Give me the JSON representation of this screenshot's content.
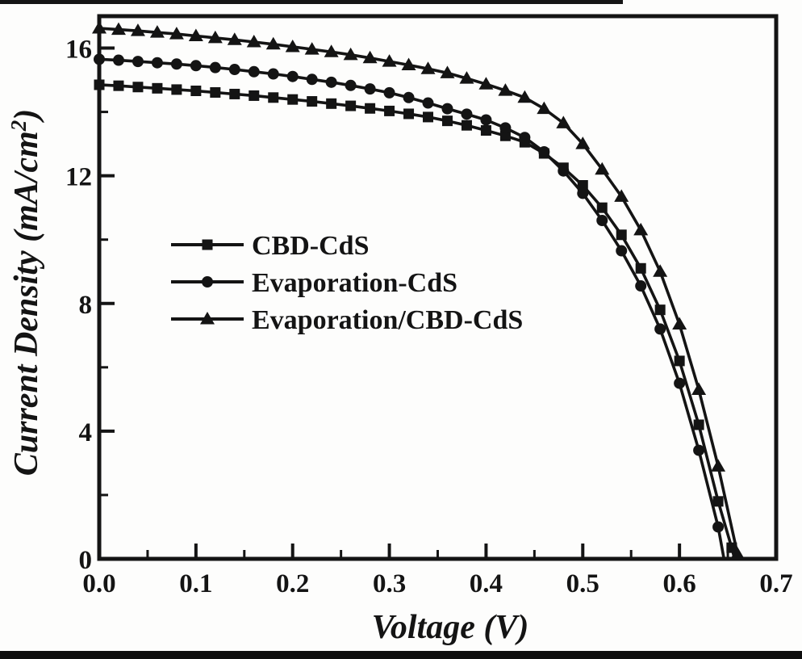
{
  "figure": {
    "background": "#fdfdfc",
    "ink": "#141414",
    "top_rule_color": "#151515",
    "bottom_rule_color": "#0d0d0d"
  },
  "chart_data": {
    "type": "line",
    "title": "",
    "xlabel": "Voltage (V)",
    "ylabel": "Current Density (mA/cm²)",
    "ylabel_parts": {
      "pre": "Current Density (mA/cm",
      "sup": "2",
      "post": ")"
    },
    "xlim": [
      0.0,
      0.7
    ],
    "ylim": [
      0,
      17
    ],
    "grid": false,
    "x_major_ticks": [
      0.0,
      0.1,
      0.2,
      0.3,
      0.4,
      0.5,
      0.6,
      0.7
    ],
    "x_major_tick_labels": [
      "0.0",
      "0.1",
      "0.2",
      "0.3",
      "0.4",
      "0.5",
      "0.6",
      "0.7"
    ],
    "x_minor_ticks": [
      0.05,
      0.15,
      0.25,
      0.35,
      0.45,
      0.55,
      0.65
    ],
    "y_major_ticks": [
      0,
      4,
      8,
      12,
      16
    ],
    "y_major_tick_labels": [
      "0",
      "4",
      "8",
      "12",
      "16"
    ],
    "y_minor_ticks": [
      2,
      6,
      10,
      14
    ],
    "legend": {
      "position": "upper-left-inside",
      "items": [
        "CBD-CdS",
        "Evaporation-CdS",
        "Evaporation/CBD-CdS"
      ]
    },
    "series": [
      {
        "name": "CBD-CdS",
        "marker": "square",
        "color": "#141414",
        "jsc_mA_cm2": 14.85,
        "voc_v": 0.657,
        "points": [
          [
            0,
            14.85
          ],
          [
            0.02,
            14.82
          ],
          [
            0.04,
            14.78
          ],
          [
            0.06,
            14.74
          ],
          [
            0.08,
            14.7
          ],
          [
            0.1,
            14.66
          ],
          [
            0.12,
            14.61
          ],
          [
            0.14,
            14.56
          ],
          [
            0.16,
            14.51
          ],
          [
            0.18,
            14.45
          ],
          [
            0.2,
            14.39
          ],
          [
            0.22,
            14.33
          ],
          [
            0.24,
            14.26
          ],
          [
            0.26,
            14.19
          ],
          [
            0.28,
            14.11
          ],
          [
            0.3,
            14.03
          ],
          [
            0.32,
            13.94
          ],
          [
            0.34,
            13.84
          ],
          [
            0.36,
            13.72
          ],
          [
            0.38,
            13.58
          ],
          [
            0.4,
            13.42
          ],
          [
            0.42,
            13.25
          ],
          [
            0.44,
            13.05
          ],
          [
            0.46,
            12.7
          ],
          [
            0.48,
            12.25
          ],
          [
            0.5,
            11.7
          ],
          [
            0.52,
            11.0
          ],
          [
            0.54,
            10.15
          ],
          [
            0.56,
            9.1
          ],
          [
            0.58,
            7.8
          ],
          [
            0.6,
            6.2
          ],
          [
            0.62,
            4.2
          ],
          [
            0.64,
            1.8
          ],
          [
            0.654,
            0.35
          ]
        ]
      },
      {
        "name": "Evaporation-CdS",
        "marker": "circle",
        "color": "#141414",
        "jsc_mA_cm2": 15.65,
        "voc_v": 0.646,
        "points": [
          [
            0,
            15.65
          ],
          [
            0.02,
            15.62
          ],
          [
            0.04,
            15.58
          ],
          [
            0.06,
            15.54
          ],
          [
            0.08,
            15.5
          ],
          [
            0.1,
            15.45
          ],
          [
            0.12,
            15.39
          ],
          [
            0.14,
            15.33
          ],
          [
            0.16,
            15.26
          ],
          [
            0.18,
            15.19
          ],
          [
            0.2,
            15.11
          ],
          [
            0.22,
            15.02
          ],
          [
            0.24,
            14.93
          ],
          [
            0.26,
            14.83
          ],
          [
            0.28,
            14.72
          ],
          [
            0.3,
            14.6
          ],
          [
            0.32,
            14.45
          ],
          [
            0.34,
            14.28
          ],
          [
            0.36,
            14.1
          ],
          [
            0.38,
            13.93
          ],
          [
            0.4,
            13.75
          ],
          [
            0.42,
            13.5
          ],
          [
            0.44,
            13.2
          ],
          [
            0.46,
            12.75
          ],
          [
            0.48,
            12.15
          ],
          [
            0.5,
            11.45
          ],
          [
            0.52,
            10.6
          ],
          [
            0.54,
            9.65
          ],
          [
            0.56,
            8.55
          ],
          [
            0.58,
            7.2
          ],
          [
            0.6,
            5.5
          ],
          [
            0.62,
            3.4
          ],
          [
            0.64,
            1.0
          ]
        ]
      },
      {
        "name": "Evaporation/CBD-CdS",
        "marker": "triangle",
        "color": "#141414",
        "jsc_mA_cm2": 16.62,
        "voc_v": 0.663,
        "points": [
          [
            0,
            16.62
          ],
          [
            0.02,
            16.58
          ],
          [
            0.04,
            16.54
          ],
          [
            0.06,
            16.49
          ],
          [
            0.08,
            16.44
          ],
          [
            0.1,
            16.38
          ],
          [
            0.12,
            16.32
          ],
          [
            0.14,
            16.26
          ],
          [
            0.16,
            16.19
          ],
          [
            0.18,
            16.12
          ],
          [
            0.2,
            16.04
          ],
          [
            0.22,
            15.96
          ],
          [
            0.24,
            15.88
          ],
          [
            0.26,
            15.79
          ],
          [
            0.28,
            15.69
          ],
          [
            0.3,
            15.58
          ],
          [
            0.32,
            15.47
          ],
          [
            0.34,
            15.35
          ],
          [
            0.36,
            15.22
          ],
          [
            0.38,
            15.05
          ],
          [
            0.4,
            14.87
          ],
          [
            0.42,
            14.67
          ],
          [
            0.44,
            14.45
          ],
          [
            0.46,
            14.1
          ],
          [
            0.48,
            13.65
          ],
          [
            0.5,
            13.0
          ],
          [
            0.52,
            12.2
          ],
          [
            0.54,
            11.35
          ],
          [
            0.56,
            10.3
          ],
          [
            0.58,
            9.0
          ],
          [
            0.6,
            7.35
          ],
          [
            0.62,
            5.3
          ],
          [
            0.64,
            2.9
          ],
          [
            0.66,
            0.15
          ]
        ]
      }
    ]
  }
}
